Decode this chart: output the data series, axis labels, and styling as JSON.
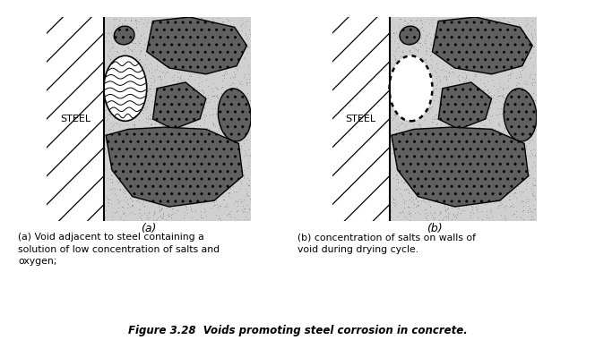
{
  "fig_width": 6.64,
  "fig_height": 3.8,
  "dpi": 100,
  "background_color": "#ffffff",
  "title": "Figure 3.28  Voids promoting steel corrosion in concrete.",
  "label_a": "(a)",
  "label_b": "(b)",
  "caption_a": "(a) Void adjacent to steel containing a\nsolution of low concentration of salts and\noxygen;",
  "caption_b": "(b) concentration of salts on walls of\nvoid during drying cycle.",
  "steel_label": "STEEL",
  "concrete_bg": "#cccccc",
  "steel_line_color": "#000000"
}
